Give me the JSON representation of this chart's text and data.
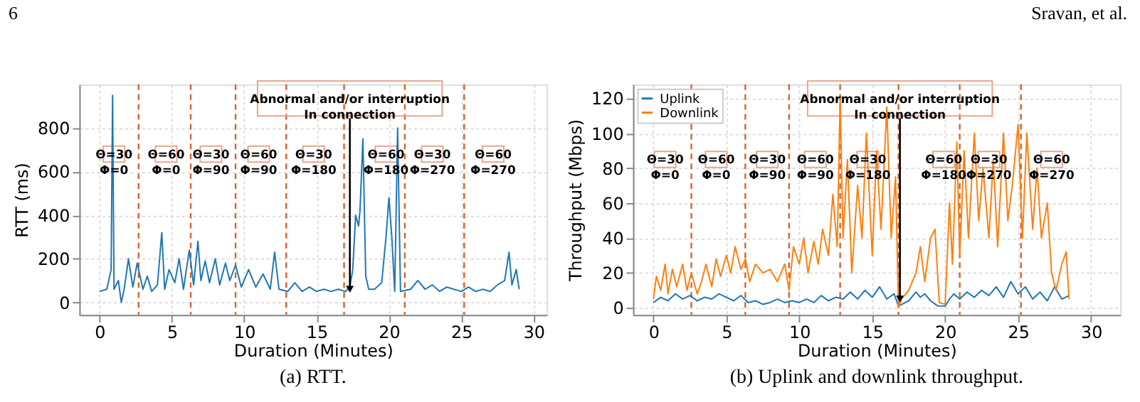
{
  "chart_data": [
    {
      "type": "line",
      "title": "(a) RTT.",
      "xlabel": "Duration (Minutes)",
      "ylabel": "RTT (ms)",
      "xlim": [
        -1.4,
        30.9
      ],
      "ylim": [
        -57,
        1000
      ],
      "xticks": [
        0,
        5,
        10,
        15,
        20,
        25,
        30
      ],
      "yticks": [
        0,
        200,
        400,
        600,
        800
      ],
      "grid": true,
      "legend": false,
      "series": [
        {
          "color": "#1f77b4",
          "x": [
            0,
            0.5,
            0.8,
            0.9,
            1.0,
            1.3,
            1.5,
            1.7,
            2,
            2.3,
            2.6,
            3,
            3.3,
            3.6,
            4,
            4.3,
            4.5,
            4.8,
            5.2,
            5.5,
            5.8,
            6.2,
            6.5,
            6.8,
            7,
            7.3,
            7.6,
            8,
            8.3,
            8.7,
            9,
            9.4,
            9.8,
            10.3,
            10.8,
            11.3,
            11.8,
            12.1,
            12.4,
            13,
            13.5,
            14,
            14.5,
            15,
            15.5,
            16,
            16.5,
            17,
            17.3,
            17.5,
            17.7,
            17.9,
            18,
            18.2,
            18.4,
            18.6,
            19,
            19.5,
            19.8,
            20,
            20.2,
            20.4,
            20.6,
            20.8,
            21.5,
            22,
            22.5,
            23,
            23.5,
            24,
            25,
            25.5,
            26,
            26.5,
            27,
            27.5,
            28,
            28.3,
            28.5,
            28.8,
            29
          ],
          "values": [
            50,
            60,
            150,
            950,
            60,
            100,
            0,
            60,
            200,
            70,
            180,
            60,
            120,
            50,
            80,
            320,
            60,
            150,
            90,
            200,
            60,
            240,
            80,
            280,
            100,
            190,
            90,
            200,
            80,
            180,
            100,
            170,
            70,
            150,
            70,
            130,
            60,
            230,
            60,
            50,
            90,
            50,
            70,
            50,
            60,
            50,
            60,
            50,
            70,
            150,
            400,
            350,
            420,
            750,
            120,
            60,
            60,
            90,
            300,
            480,
            300,
            50,
            800,
            50,
            60,
            100,
            60,
            80,
            50,
            70,
            50,
            70,
            50,
            60,
            50,
            80,
            100,
            230,
            80,
            150,
            60
          ]
        }
      ],
      "ref_lines": [
        {
          "axis": "x",
          "value": 2.7,
          "color": "#d9622b",
          "line_style": "dashed"
        },
        {
          "axis": "x",
          "value": 6.3,
          "color": "#d9622b",
          "line_style": "dashed"
        },
        {
          "axis": "x",
          "value": 9.4,
          "color": "#d9622b",
          "line_style": "dashed"
        },
        {
          "axis": "x",
          "value": 12.9,
          "color": "#d9622b",
          "line_style": "dashed"
        },
        {
          "axis": "x",
          "value": 16.9,
          "color": "#d9622b",
          "line_style": "dashed"
        },
        {
          "axis": "x",
          "value": 21.1,
          "color": "#d9622b",
          "line_style": "dashed"
        },
        {
          "axis": "x",
          "value": 25.2,
          "color": "#d9622b",
          "line_style": "dashed"
        }
      ],
      "annotations": [
        "6",
        {
          "text": "Θ=30\nΦ=0",
          "x": 1.0,
          "y": 680
        },
        {
          "text": "Θ=60\nΦ=0",
          "x": 4.6,
          "y": 680
        },
        {
          "text": "Θ=30\nΦ=90",
          "x": 7.7,
          "y": 680
        },
        {
          "text": "Θ=60\nΦ=90",
          "x": 11.0,
          "y": 680
        },
        {
          "text": "Θ=30\nΦ=180",
          "x": 14.8,
          "y": 680
        },
        {
          "text": "Θ=60\nΦ=180",
          "x": 19.8,
          "y": 680
        },
        {
          "text": "Θ=30\nΦ=270",
          "x": 23.0,
          "y": 680
        },
        {
          "text": "Θ=60\nΦ=270",
          "x": 27.2,
          "y": 680
        },
        {
          "text": "Abnormal and/or interruption\nIn connection",
          "x": 17.3,
          "y": 60
        }
      ]
    },
    {
      "type": "line",
      "title": "(b) Uplink and downlink throughput.",
      "xlabel": "Duration (Minutes)",
      "ylabel": "Throughput (Mbps)",
      "xlim": [
        -1.4,
        32
      ],
      "ylim": [
        -4,
        128
      ],
      "xticks": [
        0,
        5,
        10,
        15,
        20,
        25,
        30
      ],
      "yticks": [
        0,
        20,
        40,
        60,
        80,
        100,
        120
      ],
      "grid": true,
      "legend": "top left",
      "series": [
        {
          "name": "Uplink",
          "color": "#1f77b4",
          "x": [
            0,
            0.5,
            1,
            1.5,
            2,
            2.5,
            3,
            3.5,
            4,
            4.5,
            5,
            5.5,
            6,
            6.5,
            7,
            7.5,
            8,
            8.5,
            9,
            9.5,
            10,
            10.5,
            11,
            11.5,
            12,
            12.5,
            13,
            13.5,
            14,
            14.5,
            15,
            15.5,
            16,
            16.5,
            16.8,
            17.5,
            18,
            18.3,
            18.6,
            19,
            19.5,
            20,
            20.3,
            20.6,
            21,
            21.5,
            22,
            22.5,
            23,
            23.5,
            24,
            24.5,
            25,
            25.5,
            26,
            26.5,
            27,
            27.5,
            28,
            28.5
          ],
          "values": [
            3,
            6,
            4,
            8,
            5,
            7,
            4,
            6,
            5,
            8,
            6,
            4,
            7,
            3,
            4,
            2,
            3,
            5,
            3,
            4,
            3,
            5,
            3,
            7,
            4,
            6,
            5,
            9,
            5,
            10,
            6,
            12,
            5,
            8,
            1,
            4,
            9,
            6,
            8,
            4,
            1,
            1,
            5,
            8,
            5,
            9,
            6,
            10,
            7,
            12,
            6,
            15,
            8,
            12,
            5,
            9,
            4,
            12,
            5,
            7
          ]
        },
        {
          "name": "Downlink",
          "color": "#ff7f0e",
          "x": [
            0,
            0.2,
            0.5,
            0.8,
            1,
            1.3,
            1.6,
            2,
            2.3,
            2.6,
            3,
            3.3,
            3.6,
            4,
            4.3,
            4.6,
            5,
            5.3,
            5.6,
            6,
            6.3,
            6.6,
            7,
            7.5,
            8,
            8.5,
            9,
            9.3,
            9.6,
            10,
            10.3,
            10.6,
            11,
            11.3,
            11.6,
            12,
            12.3,
            12.6,
            12.8,
            13,
            13.3,
            13.6,
            14,
            14.3,
            14.6,
            15,
            15.3,
            15.6,
            16,
            16.3,
            16.6,
            16.8,
            17,
            17.5,
            18,
            18.3,
            18.6,
            19,
            19.3,
            19.6,
            20,
            20.3,
            20.5,
            20.8,
            21,
            21.3,
            21.6,
            22,
            22.3,
            22.6,
            23,
            23.3,
            23.6,
            24,
            24.3,
            24.6,
            25,
            25.3,
            25.6,
            26,
            26.3,
            26.6,
            27,
            27.3,
            27.6,
            28,
            28.3,
            28.5
          ],
          "values": [
            5,
            18,
            10,
            25,
            8,
            22,
            12,
            25,
            10,
            20,
            8,
            15,
            25,
            12,
            28,
            18,
            30,
            20,
            35,
            22,
            28,
            15,
            25,
            20,
            22,
            15,
            25,
            10,
            35,
            25,
            40,
            20,
            38,
            25,
            45,
            30,
            65,
            35,
            120,
            40,
            85,
            20,
            70,
            40,
            100,
            30,
            90,
            45,
            115,
            40,
            75,
            0,
            5,
            10,
            20,
            35,
            15,
            40,
            45,
            3,
            2,
            60,
            25,
            95,
            30,
            90,
            40,
            100,
            50,
            80,
            40,
            85,
            35,
            100,
            50,
            70,
            105,
            40,
            100,
            45,
            80,
            40,
            60,
            20,
            10,
            25,
            32,
            5
          ]
        }
      ],
      "ref_lines": [
        {
          "axis": "x",
          "value": 2.6,
          "color": "#d9622b",
          "line_style": "dashed"
        },
        {
          "axis": "x",
          "value": 6.3,
          "color": "#d9622b",
          "line_style": "dashed"
        },
        {
          "axis": "x",
          "value": 9.3,
          "color": "#d9622b",
          "line_style": "dashed"
        },
        {
          "axis": "x",
          "value": 12.8,
          "color": "#d9622b",
          "line_style": "dashed"
        },
        {
          "axis": "x",
          "value": 16.8,
          "color": "#d9622b",
          "line_style": "dashed"
        },
        {
          "axis": "x",
          "value": 21.0,
          "color": "#d9622b",
          "line_style": "dashed"
        },
        {
          "axis": "x",
          "value": 25.2,
          "color": "#d9622b",
          "line_style": "dashed"
        }
      ],
      "annotations": [
        "Sravan, et al.",
        {
          "text": "Θ=30\nΦ=0",
          "x": 0.8,
          "y": 85
        },
        {
          "text": "Θ=60\nΦ=0",
          "x": 4.3,
          "y": 85
        },
        {
          "text": "Θ=30\nΦ=90",
          "x": 7.8,
          "y": 85
        },
        {
          "text": "Θ=60\nΦ=90",
          "x": 11.1,
          "y": 85
        },
        {
          "text": "Θ=30\nΦ=180",
          "x": 14.7,
          "y": 85
        },
        {
          "text": "Θ=60\nΦ=180",
          "x": 19.9,
          "y": 85
        },
        {
          "text": "Θ=30\nΦ=270",
          "x": 23.0,
          "y": 85
        },
        {
          "text": "Θ=60\nΦ=270",
          "x": 27.3,
          "y": 85
        },
        {
          "text": "Abnormal and/or interruption\nIn connection",
          "x": 16.9,
          "y": 5
        }
      ]
    }
  ]
}
